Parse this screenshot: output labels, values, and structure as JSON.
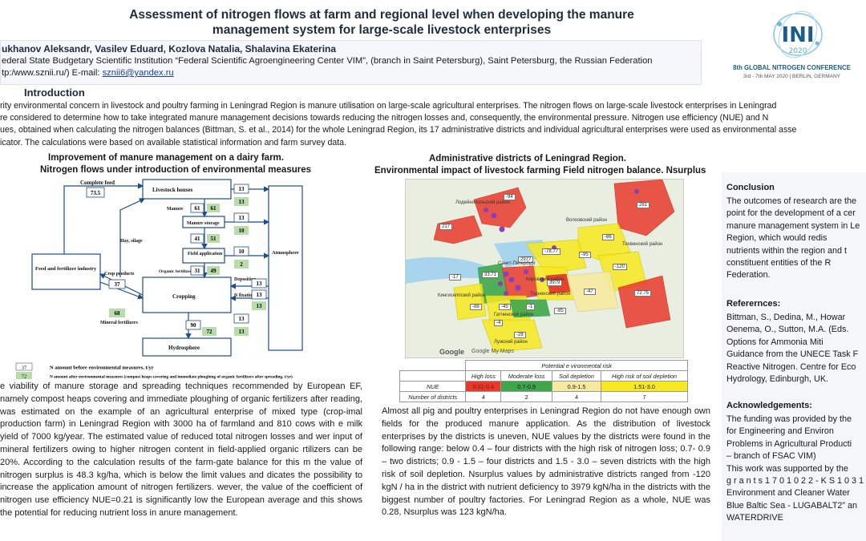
{
  "header": {
    "title_line1": "Assessment of nitrogen flows  at farm and regional level when developing the manure",
    "title_line2": "management system for large-scale livestock enterprises",
    "authors": "ukhanov Aleksandr, Vasilev Eduard, Kozlova Natalia, Shalavina Ekaterina",
    "affiliation": "ederal State Budgetary Scientific Institution “Federal Scientific Agroengineering Center VIM”,  (branch in Saint Petersburg),  Saint Petersburg, the Russian Federation",
    "web": "tp:/www.sznii.ru/) E-mail: ",
    "email": "sznii6@yandex.ru"
  },
  "logo": {
    "mark": "INI",
    "year": "2020",
    "conference": "8th GLOBAL NITROGEN CONFERENCE",
    "dates": "3rd - 7th MAY 2020 | BERLIN, GERMANY"
  },
  "intro": {
    "heading": "Introduction",
    "lines": [
      "rity environmental concern in livestock and poultry farming in Leningrad Region is manure utilisation on large-scale agricultural enterprises. The nitrogen flows on large-scale livestock enterprises in Leningrad",
      "re considered to determine how to take integrated manure management decisions towards reducing the nitrogen losses and, consequently, the environmental pressure. Nitrogen use efficiency (NUE) and N",
      "ues, obtained when calculating the nitrogen balances (Bittman, S. et al., 2014) for the whole Leningrad Region, its 17 administrative districts and individual agricultural enterprises were used as environmental asse",
      "icator.  The calculations were based on available statistical information and farm survey data."
    ]
  },
  "left": {
    "heading1": "Improvement of manure management  on a dairy farm.",
    "heading2": "Nitrogen flows under introduction of environmental  measures",
    "diagram": {
      "complete_feed": "Complete feed",
      "complete_feed_val": "73.5",
      "livestock_houses": "Livestock houses",
      "manure": "Manure",
      "manure_storage": "Manure storage",
      "field_application": "Field application",
      "organic_fertilizers": "Organic fertilizers",
      "hay_silage": "Hay, silage",
      "crop_products": "Crop products",
      "feed_industry": "Feed and fertilizer industry",
      "cropping": "Cropping",
      "mineral_fertilizers": "Mineral fertilizers",
      "atmosphere": "Atmosphere",
      "deposition": "Deposition",
      "n_fixation": "N fixation",
      "hydrosphere": "Hydrosphere",
      "v61a": "61",
      "v61b": "61",
      "v41a": "41",
      "v51": "51",
      "v31": "31",
      "v49": "49",
      "v37": "37",
      "v68": "68",
      "v90": "90",
      "v72": "72",
      "a13_1": "13",
      "a13_2": "13",
      "a13_3": "13",
      "a10_1": "10",
      "a10_2": "10",
      "a2": "2",
      "a13_4": "13",
      "a13_5": "13",
      "a13_6": "13",
      "a13_7": "13",
      "a13_8": "13"
    },
    "legend_before_val": "37",
    "legend_before": "N amount before environmental measures, t/yr",
    "legend_after_val": "72",
    "legend_after": "N amount after environmental measures (compost heaps covering and immediate ploughing of organic fertilizers  after spreading, t/yr)",
    "body": "e viability of manure storage and spreading techniques recommended by European EF, namely compost heaps covering and immediate ploughing of organic fertilizers after reading, was estimated on the example of an agricultural enterprise of mixed type (crop-imal production farm) in Leningrad Region with 3000 ha of farmland and 810 cows with e milk yield of 7000 kg/year. The estimated value of reduced total nitrogen losses and wer input of mineral fertilizers owing to higher nitrogen content in field-applied organic rtilizers can be 20%. According to the calculation results of the farm-gate balance for this m the value of nitrogen surplus is 48.3 kg/ha, which is below the limit values and dicates the possibility to increase the application amount of nitrogen fertilizers. wever, the value of the coefficient of nitrogen use efficiency NUE=0.21 is significantly low the European average and this shows the potential for reducing nutrient loss in anure management."
  },
  "middle": {
    "heading1": "Administrative districts of Leningrad Region.",
    "heading2": "Environmental impact of livestock farming  Field nitrogen balance. Nsurplus",
    "map_values": [
      "-94",
      "217",
      "281",
      "-86",
      "-78.77",
      "-95",
      "33.71",
      "2977",
      "-120",
      "-47",
      "-45",
      "-17",
      "-85",
      "-1",
      "72.75",
      "-88",
      "-4",
      "-28",
      "3979"
    ],
    "map_places": [
      "Лодейнопольский район",
      "Волховский район",
      "Кировский район",
      "Санкт-Петербург",
      "Тосненский район",
      "Гатчинский район",
      "Лужский район",
      "Кингисеппский район",
      "Тихвинский район",
      "Google",
      "Google My Maps"
    ],
    "table": {
      "caption": "Potential e  vironmental risk",
      "headers": [
        "High loss",
        "Moderate loss",
        "Soil depletion",
        "High risk of soil depletion"
      ],
      "nue_label": "NUE",
      "ranges": [
        "0.01-0.4",
        "0.7-0.9",
        "0.9-1.5",
        "1.51-3.0"
      ],
      "count_label": "Number of  districts",
      "counts": [
        "4",
        "2",
        "4",
        "7"
      ]
    },
    "body": "Almost all pig and poultry enterprises in Leningrad Region do not have enough own fields for the produced manure application.  As the distribution of livestock enterprises by the districts is uneven, NUE values by the districts were found in the following range: below 0.4 – four districts with the high risk of nitrogen loss; 0.7- 0.9 – two districts; 0.9 - 1.5 – four districts and 1.5 - 3.0 – seven districts with the high risk of soil depletion. Nsurplus values by administrative districts ranged from  -120 kgN / ha in the district with nutrient deficiency to 3979 kgN/ha in the districts with the biggest number of poultry factories. For Leningrad Region as a whole, NUE was 0.28, Nsurplus was 123 kgN/ha."
  },
  "right": {
    "conclusion_head": "Conclusion",
    "conclusion_lines": [
      "The outcomes of research are the",
      "point for the development of a cer",
      "manure management system in Le",
      "Region,  which  would  redis",
      "nutrients within the region and t",
      "constituent  entities  of  the  R",
      "Federation."
    ],
    "refs_head": "Referernces:",
    "refs_lines": [
      "Bittman, S.,  Dedina,  M.,  Howar",
      "Oenema,  O.,  Sutton,  M.A.  (Eds.",
      "Options  for  Ammonia  Miti",
      "Guidance from the UNECE Task F",
      "Reactive Nitrogen. Centre for Eco",
      "Hydrology, Edinburgh, UK."
    ],
    "ack_head": "Acknowledgements:",
    "ack_lines": [
      "The funding was provided by the",
      "for  Engineering  and  Environ",
      "Problems  in Agricultural Producti",
      "– branch of FSAC VIM)",
      "This work was supported   by the",
      "g r a n t s   1 7 0 1 0 2 2 - K S 1 0 3 1",
      "Environment and Cleaner Water",
      "Blue Baltic Sea - LUGABALT2” an",
      "WATERDRIVE"
    ]
  },
  "colors": {
    "high_loss": "#e8392a",
    "moderate_loss": "#3fa64a",
    "soil_depletion": "#f6e9a0",
    "high_risk_soil": "#f7e81f",
    "green_box": "#b8dcaa",
    "accent": "#1a3fb0"
  }
}
